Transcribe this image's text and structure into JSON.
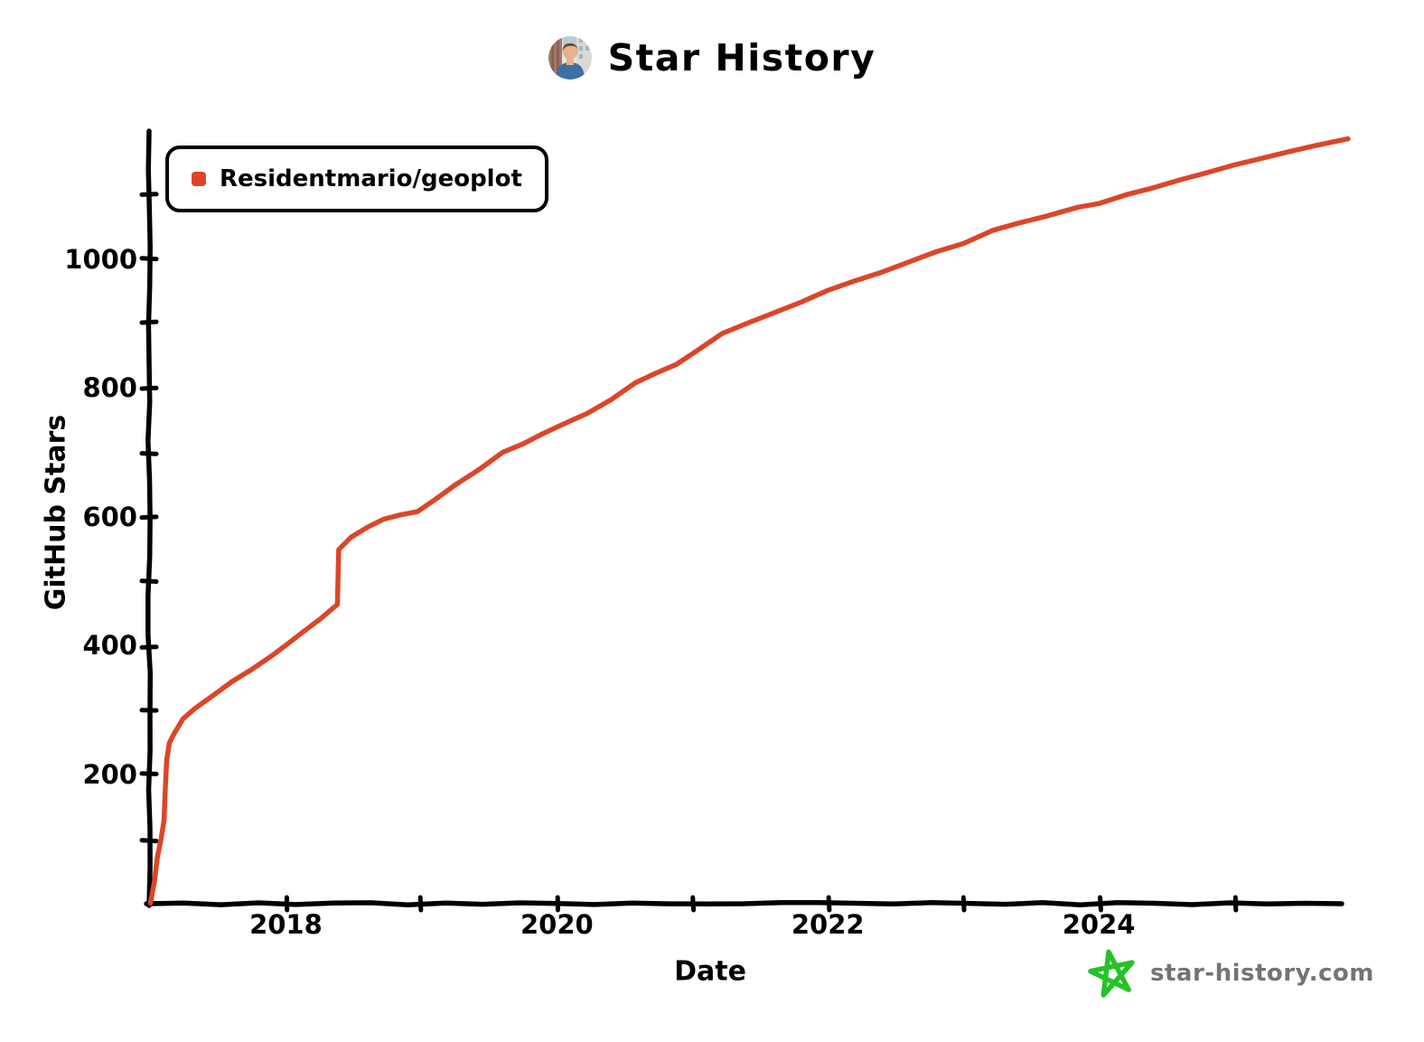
{
  "header": {
    "title": "Star History"
  },
  "legend": {
    "items": [
      {
        "label": "Residentmario/geoplot",
        "color": "#dd4528"
      }
    ]
  },
  "watermark": {
    "text": "star-history.com",
    "star_color": "#26c226",
    "text_color": "#747474"
  },
  "colors": {
    "axis": "#000000",
    "background": "#ffffff",
    "accent_line": "#dd4528"
  },
  "chart_data": {
    "type": "line",
    "title": "Star History",
    "xlabel": "Date",
    "ylabel": "GitHub Stars",
    "legend_position": "top-left",
    "grid": false,
    "xlim": [
      2016.99,
      2025.78
    ],
    "ylim": [
      0,
      1200
    ],
    "x_ticks": [
      2018,
      2020,
      2022,
      2024
    ],
    "x_minor_ticks": [
      2018,
      2019,
      2020,
      2021,
      2022,
      2023,
      2024,
      2025
    ],
    "y_ticks": [
      200,
      400,
      600,
      800,
      1000
    ],
    "y_minor_ticks": [
      100,
      200,
      300,
      400,
      500,
      600,
      700,
      800,
      900,
      1000,
      1100
    ],
    "series": [
      {
        "name": "Residentmario/geoplot",
        "color": "#dd4528",
        "points": [
          [
            2017.0,
            0
          ],
          [
            2017.03,
            35
          ],
          [
            2017.05,
            70
          ],
          [
            2017.08,
            102
          ],
          [
            2017.1,
            130
          ],
          [
            2017.11,
            180
          ],
          [
            2017.12,
            222
          ],
          [
            2017.14,
            250
          ],
          [
            2017.18,
            266
          ],
          [
            2017.24,
            288
          ],
          [
            2017.32,
            302
          ],
          [
            2017.45,
            322
          ],
          [
            2017.6,
            344
          ],
          [
            2017.75,
            365
          ],
          [
            2017.9,
            386
          ],
          [
            2018.0,
            402
          ],
          [
            2018.12,
            422
          ],
          [
            2018.25,
            442
          ],
          [
            2018.38,
            464
          ],
          [
            2018.39,
            550
          ],
          [
            2018.48,
            570
          ],
          [
            2018.6,
            585
          ],
          [
            2018.72,
            598
          ],
          [
            2018.85,
            603
          ],
          [
            2018.97,
            608
          ],
          [
            2019.1,
            628
          ],
          [
            2019.25,
            650
          ],
          [
            2019.42,
            674
          ],
          [
            2019.6,
            702
          ],
          [
            2019.75,
            715
          ],
          [
            2019.9,
            730
          ],
          [
            2020.05,
            746
          ],
          [
            2020.22,
            762
          ],
          [
            2020.4,
            784
          ],
          [
            2020.58,
            808
          ],
          [
            2020.72,
            822
          ],
          [
            2020.88,
            838
          ],
          [
            2021.0,
            855
          ],
          [
            2021.22,
            886
          ],
          [
            2021.4,
            900
          ],
          [
            2021.6,
            918
          ],
          [
            2021.8,
            934
          ],
          [
            2022.0,
            952
          ],
          [
            2022.2,
            968
          ],
          [
            2022.4,
            982
          ],
          [
            2022.6,
            997
          ],
          [
            2022.8,
            1012
          ],
          [
            2023.0,
            1026
          ],
          [
            2023.22,
            1046
          ],
          [
            2023.4,
            1056
          ],
          [
            2023.6,
            1068
          ],
          [
            2023.85,
            1081
          ],
          [
            2024.0,
            1088
          ],
          [
            2024.2,
            1100
          ],
          [
            2024.4,
            1112
          ],
          [
            2024.6,
            1124
          ],
          [
            2024.8,
            1135
          ],
          [
            2025.0,
            1147
          ],
          [
            2025.2,
            1158
          ],
          [
            2025.4,
            1168
          ],
          [
            2025.6,
            1177
          ],
          [
            2025.84,
            1187
          ]
        ]
      }
    ]
  }
}
